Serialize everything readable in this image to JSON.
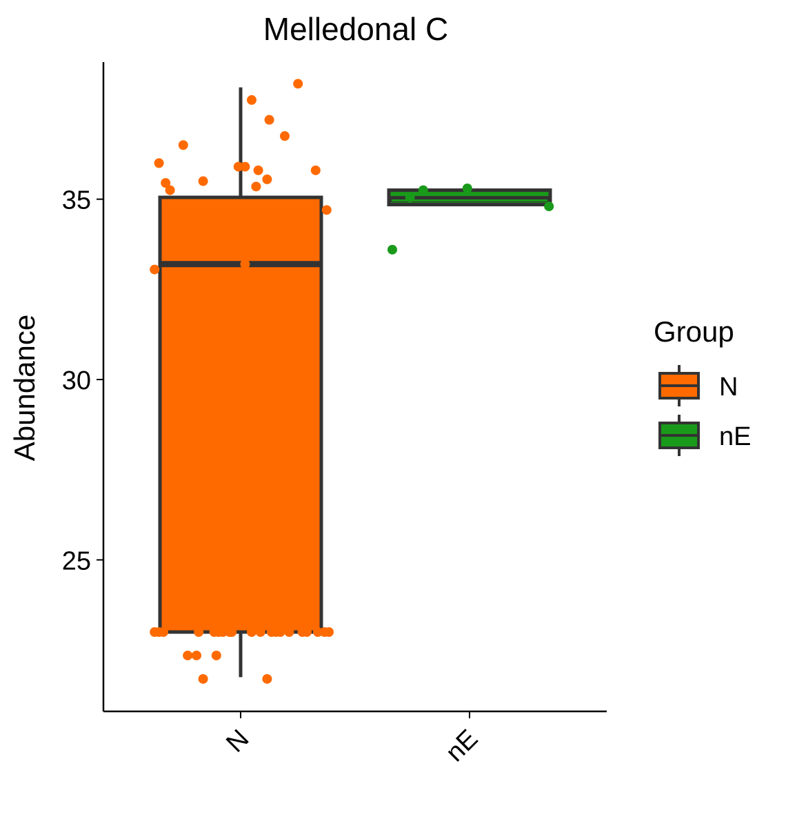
{
  "chart_data": {
    "type": "box",
    "title": "Melledonal C",
    "xlabel": "",
    "ylabel": "Abundance",
    "ylim": [
      20.8,
      38.8
    ],
    "yticks": [
      25,
      30,
      35
    ],
    "ytick_labels": [
      "25",
      "30",
      "35"
    ],
    "categories": [
      "N",
      "nE"
    ],
    "grid": false,
    "legend": {
      "title": "Group",
      "placement": "right",
      "entries": [
        {
          "label": "N",
          "color": "#FF6A00"
        },
        {
          "label": "nE",
          "color": "#1A9A1A"
        }
      ]
    },
    "boxes": [
      {
        "category": "N",
        "color": "#FF6A00",
        "q1": 23.0,
        "median": 33.2,
        "q3": 35.05,
        "whisker_low": 21.75,
        "whisker_high": 38.1
      },
      {
        "category": "nE",
        "color": "#1A9A1A",
        "q1": 34.85,
        "median": 35.0,
        "q3": 35.25,
        "whisker_low": 34.85,
        "whisker_high": 35.25
      }
    ],
    "points": [
      {
        "category": "N",
        "jitter": -0.39,
        "y": 23.0
      },
      {
        "category": "N",
        "jitter": -0.37,
        "y": 23.0
      },
      {
        "category": "N",
        "jitter": -0.35,
        "y": 23.0
      },
      {
        "category": "N",
        "jitter": -0.19,
        "y": 23.0
      },
      {
        "category": "N",
        "jitter": -0.12,
        "y": 23.0
      },
      {
        "category": "N",
        "jitter": -0.1,
        "y": 23.0
      },
      {
        "category": "N",
        "jitter": -0.08,
        "y": 23.0
      },
      {
        "category": "N",
        "jitter": -0.05,
        "y": 23.0
      },
      {
        "category": "N",
        "jitter": -0.04,
        "y": 23.0
      },
      {
        "category": "N",
        "jitter": 0.05,
        "y": 23.0
      },
      {
        "category": "N",
        "jitter": 0.09,
        "y": 23.0
      },
      {
        "category": "N",
        "jitter": 0.14,
        "y": 23.0
      },
      {
        "category": "N",
        "jitter": 0.16,
        "y": 23.0
      },
      {
        "category": "N",
        "jitter": 0.18,
        "y": 23.0
      },
      {
        "category": "N",
        "jitter": 0.22,
        "y": 23.0
      },
      {
        "category": "N",
        "jitter": 0.28,
        "y": 23.0
      },
      {
        "category": "N",
        "jitter": 0.3,
        "y": 23.0
      },
      {
        "category": "N",
        "jitter": 0.35,
        "y": 23.0
      },
      {
        "category": "N",
        "jitter": 0.38,
        "y": 23.0
      },
      {
        "category": "N",
        "jitter": 0.4,
        "y": 23.0
      },
      {
        "category": "N",
        "jitter": -0.24,
        "y": 22.35
      },
      {
        "category": "N",
        "jitter": -0.2,
        "y": 22.35
      },
      {
        "category": "N",
        "jitter": -0.11,
        "y": 22.35
      },
      {
        "category": "N",
        "jitter": -0.17,
        "y": 21.7
      },
      {
        "category": "N",
        "jitter": 0.12,
        "y": 21.7
      },
      {
        "category": "N",
        "jitter": -0.39,
        "y": 33.05
      },
      {
        "category": "N",
        "jitter": 0.02,
        "y": 33.2
      },
      {
        "category": "N",
        "jitter": 0.39,
        "y": 34.7
      },
      {
        "category": "N",
        "jitter": -0.32,
        "y": 35.25
      },
      {
        "category": "N",
        "jitter": -0.34,
        "y": 35.45
      },
      {
        "category": "N",
        "jitter": -0.17,
        "y": 35.5
      },
      {
        "category": "N",
        "jitter": 0.07,
        "y": 35.35
      },
      {
        "category": "N",
        "jitter": 0.12,
        "y": 35.55
      },
      {
        "category": "N",
        "jitter": -0.01,
        "y": 35.9
      },
      {
        "category": "N",
        "jitter": 0.02,
        "y": 35.9
      },
      {
        "category": "N",
        "jitter": 0.08,
        "y": 35.8
      },
      {
        "category": "N",
        "jitter": 0.34,
        "y": 35.8
      },
      {
        "category": "N",
        "jitter": -0.37,
        "y": 36.0
      },
      {
        "category": "N",
        "jitter": -0.26,
        "y": 36.5
      },
      {
        "category": "N",
        "jitter": 0.2,
        "y": 36.75
      },
      {
        "category": "N",
        "jitter": 0.13,
        "y": 37.2
      },
      {
        "category": "N",
        "jitter": 0.05,
        "y": 37.75
      },
      {
        "category": "N",
        "jitter": 0.26,
        "y": 38.2
      },
      {
        "category": "nE",
        "jitter": -0.35,
        "y": 33.6
      },
      {
        "category": "nE",
        "jitter": -0.27,
        "y": 35.05
      },
      {
        "category": "nE",
        "jitter": -0.21,
        "y": 35.25
      },
      {
        "category": "nE",
        "jitter": -0.01,
        "y": 35.3
      },
      {
        "category": "nE",
        "jitter": 0.36,
        "y": 34.8
      }
    ]
  }
}
